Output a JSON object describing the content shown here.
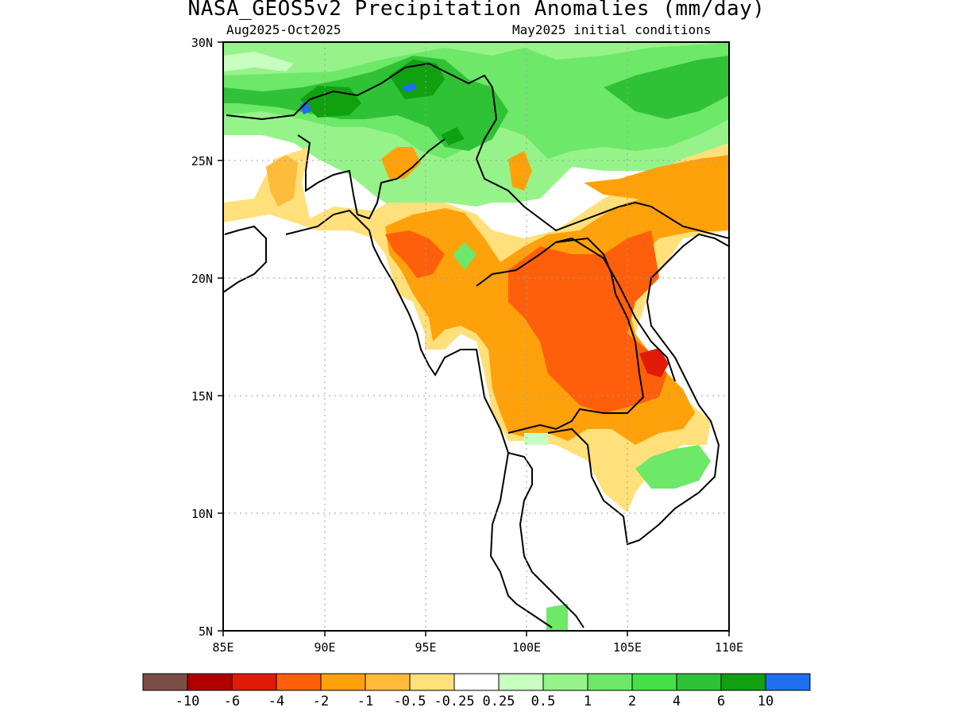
{
  "title": "NASA_GEOS5v2 Precipitation Anomalies (mm/day)",
  "period": "Aug2025-Oct2025",
  "init": "May2025 initial conditions",
  "lat_ticks": [
    "30N",
    "25N",
    "20N",
    "15N",
    "10N",
    "5N"
  ],
  "lon_ticks": [
    "85E",
    "90E",
    "95E",
    "100E",
    "105E",
    "110E"
  ],
  "legend": {
    "colors": [
      "#7b4e44",
      "#b00000",
      "#e11a08",
      "#ff5f0a",
      "#ffa10a",
      "#ffbc3c",
      "#ffe07a",
      "#ffffff",
      "#c8ffc0",
      "#96f38a",
      "#6ee868",
      "#45e049",
      "#30c236",
      "#10a010",
      "#1e6ef0"
    ],
    "labels": [
      "-10",
      "-6",
      "-4",
      "-2",
      "-1",
      "-0.5",
      "-0.25",
      "0.25",
      "0.5",
      "1",
      "2",
      "4",
      "6",
      "10"
    ]
  },
  "map_data": {
    "lat_range": [
      5,
      30
    ],
    "lon_range": [
      85,
      110
    ],
    "fill_colors": {
      "green": "#96f38a",
      "mid_green": "#6ee868",
      "dark_green": "#30c236",
      "deep_green": "#10a010",
      "blue": "#1e6ef0",
      "light_green": "#c8ffc0",
      "yellow": "#ffe07a",
      "light_orange": "#ffbc3c",
      "orange": "#ffa10a",
      "dark_orange": "#ff5f0a",
      "red": "#e11a08"
    }
  }
}
